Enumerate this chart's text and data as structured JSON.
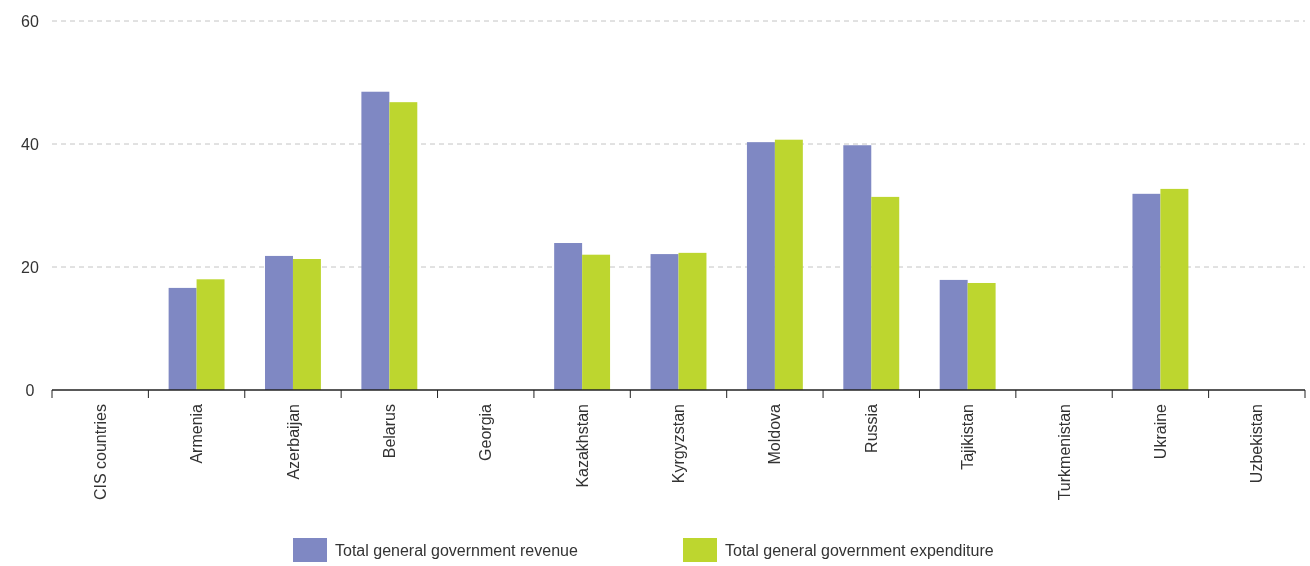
{
  "chart_data": {
    "type": "bar",
    "categories": [
      "CIS countries",
      "Armenia",
      "Azerbaijan",
      "Belarus",
      "Georgia",
      "Kazakhstan",
      "Kyrgyzstan",
      "Moldova",
      "Russia",
      "Tajikistan",
      "Turkmenistan",
      "Ukraine",
      "Uzbekistan"
    ],
    "series": [
      {
        "name": "Total general government revenue",
        "color": "#7f88c3",
        "values": [
          null,
          16.6,
          21.8,
          48.5,
          null,
          23.9,
          22.1,
          40.3,
          39.8,
          17.9,
          null,
          31.9,
          null
        ]
      },
      {
        "name": "Total general government expenditure",
        "color": "#bdd62f",
        "values": [
          null,
          18.0,
          21.3,
          46.8,
          null,
          22.0,
          22.3,
          40.7,
          31.4,
          17.4,
          null,
          32.7,
          null
        ]
      }
    ],
    "ylim": [
      0,
      60
    ],
    "yticks": [
      0,
      20,
      40,
      60
    ],
    "grid": "y",
    "legend": "bottom"
  }
}
